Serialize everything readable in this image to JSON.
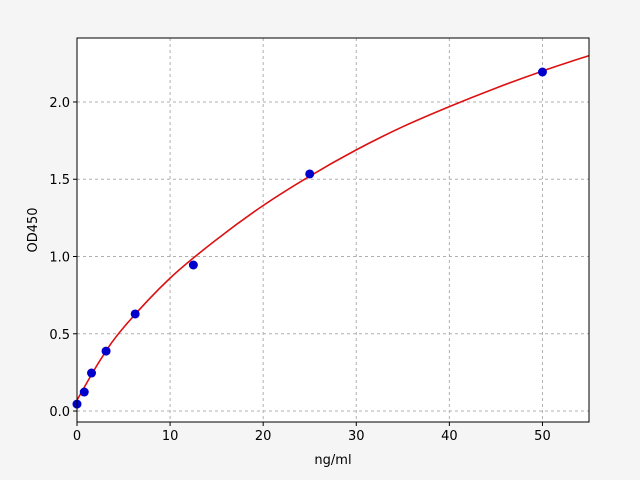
{
  "chart_data": {
    "type": "scatter",
    "title": "",
    "xlabel": "ng/ml",
    "ylabel": "OD450",
    "xlim": [
      0,
      55
    ],
    "ylim": [
      -0.071,
      2.414
    ],
    "xticks": [
      0,
      10,
      20,
      30,
      40,
      50
    ],
    "xtick_labels": [
      "0",
      "10",
      "20",
      "30",
      "40",
      "50"
    ],
    "yticks": [
      0.0,
      0.5,
      1.0,
      1.5,
      2.0
    ],
    "ytick_labels": [
      "0.0",
      "0.5",
      "1.0",
      "1.5",
      "2.0"
    ],
    "grid": true,
    "points": {
      "x": [
        0,
        0.78,
        1.56,
        3.125,
        6.25,
        12.5,
        25,
        50
      ],
      "y": [
        0.045,
        0.123,
        0.246,
        0.388,
        0.628,
        0.945,
        1.534,
        2.194
      ],
      "color": "#0000cc"
    },
    "fit_curve": {
      "x": [
        0,
        2.5,
        5,
        10,
        15,
        20,
        25,
        30,
        35,
        40,
        45,
        50,
        55
      ],
      "y": [
        0.07,
        0.33,
        0.54,
        0.86,
        1.11,
        1.33,
        1.52,
        1.69,
        1.84,
        1.97,
        2.09,
        2.2,
        2.3
      ],
      "color": "#dd1111"
    }
  }
}
